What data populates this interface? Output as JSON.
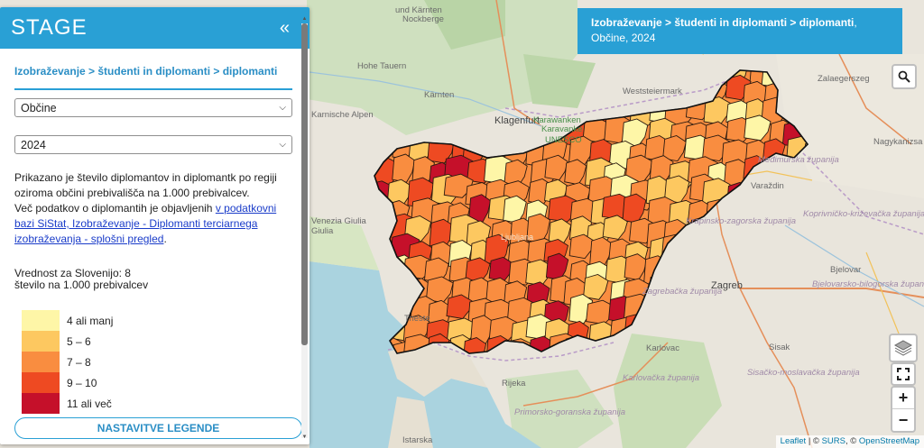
{
  "panel": {
    "logo": "STAGE",
    "collapse_icon": "«",
    "breadcrumb": "Izobraževanje > študenti in diplomanti > diplomanti",
    "level_select": "Občine",
    "year_select": "2024",
    "description_text": "Prikazano je število diplomantov in diplomantk po regiji oziroma občini prebivališča na 1.000 prebivalcev.",
    "description_more": "Več podatkov o diplomantih je objavljenih ",
    "description_link": "v podatkovni bazi SiStat, Izobraževanje - Diplomanti terciarnega izobraževanja - splošni pregled",
    "description_end": ".",
    "slovenia_value": "Vrednost za Slovenijo: 8",
    "unit": "število na 1.000 prebivalcev",
    "legend": [
      {
        "label": "4 ali manj",
        "color": "#fef6a7"
      },
      {
        "label": "5 – 6",
        "color": "#fdc860"
      },
      {
        "label": "7 – 8",
        "color": "#f98d40"
      },
      {
        "label": "9 – 10",
        "color": "#ee4a22"
      },
      {
        "label": "11 ali več",
        "color": "#c5102a"
      }
    ],
    "legend_button": "NASTAVITVE LEGENDE"
  },
  "title_box": {
    "bold": "Izobraževanje > študenti in diplomanti > diplomanti",
    "rest": ", Občine, 2024"
  },
  "map": {
    "places": [
      "und Kärnten",
      "Nockberge",
      "Hohe Tauern",
      "Karnische Alpen",
      "Kärnten",
      "Klagenfurt",
      "Karawanken",
      "Karavanke",
      "Weststeiermark",
      "Zalaegerszeg",
      "Nagykanizsa",
      "Međimurska županija",
      "Varaždin",
      "Krapinsko-zagorska županija",
      "Koprivničko-križevačka županija",
      "Bjelovar",
      "Bjelovarsko-bilogorska županija",
      "Zagreb",
      "Zagrebačka županija",
      "Sisak",
      "Sisačko-moslavačka županija",
      "Karlovac",
      "Karlovačka županija",
      "Rijeka",
      "Primorsko-goranska županija",
      "Trieste",
      "Venezia Giulia",
      "Giulia",
      "Istarska",
      "UNESCO",
      "Ljubljana"
    ]
  },
  "controls": {
    "search_icon": "magnifier",
    "layers_icon": "layers",
    "fullscreen_icon": "fullscreen",
    "zoom_in": "+",
    "zoom_out": "−"
  },
  "attribution": {
    "leaflet": "Leaflet",
    "sep1": " | © ",
    "surs": "SURS",
    "sep2": ", © ",
    "osm": "OpenStreetMap"
  }
}
